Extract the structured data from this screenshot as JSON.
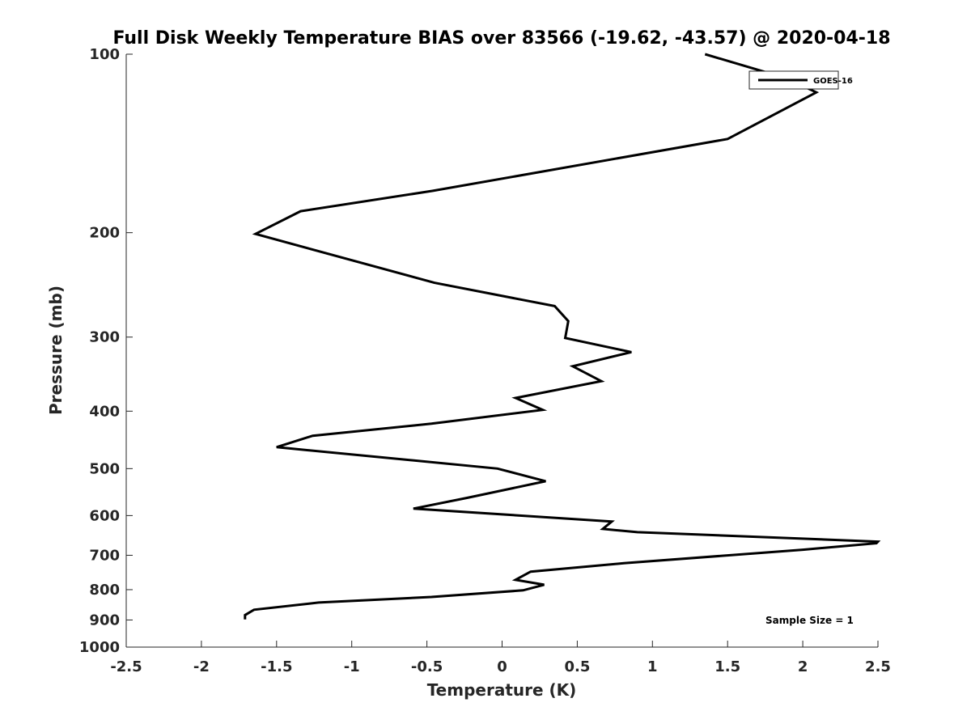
{
  "chart_data": {
    "type": "line",
    "title": "Full Disk Weekly Temperature BIAS over 83566 (-19.62, -43.57) @ 2020-04-18",
    "xlabel": "Temperature (K)",
    "ylabel": "Pressure (mb)",
    "xlim": [
      -2.5,
      2.5
    ],
    "ylim": [
      100,
      1000
    ],
    "yscale": "log",
    "yreversed": true,
    "xticks": [
      -2.5,
      -2,
      -1.5,
      -1,
      -0.5,
      0,
      0.5,
      1,
      1.5,
      2,
      2.5
    ],
    "xtick_labels": [
      "-2.5",
      "-2",
      "-1.5",
      "-1",
      "-0.5",
      "0",
      "0.5",
      "1",
      "1.5",
      "2",
      "2.5"
    ],
    "yticks": [
      100,
      200,
      300,
      400,
      500,
      600,
      700,
      800,
      900,
      1000
    ],
    "ytick_labels": [
      "100",
      "200",
      "300",
      "400",
      "500",
      "600",
      "700",
      "800",
      "900",
      "1000"
    ],
    "grid": false,
    "legend_position": "top-right",
    "series": [
      {
        "name": "GOES-16",
        "color": "#000000",
        "points": [
          [
            1.35,
            100
          ],
          [
            1.9,
            110
          ],
          [
            2.09,
            116
          ],
          [
            1.5,
            139
          ],
          [
            -0.46,
            170
          ],
          [
            -1.34,
            184
          ],
          [
            -1.64,
            201
          ],
          [
            -0.45,
            243
          ],
          [
            0.35,
            266
          ],
          [
            0.44,
            282
          ],
          [
            0.42,
            301
          ],
          [
            0.86,
            318
          ],
          [
            0.47,
            336
          ],
          [
            0.66,
            356
          ],
          [
            0.09,
            380
          ],
          [
            0.27,
            398
          ],
          [
            -0.47,
            420
          ],
          [
            -1.26,
            440
          ],
          [
            -1.5,
            460
          ],
          [
            -0.03,
            500
          ],
          [
            0.29,
            525
          ],
          [
            -0.23,
            560
          ],
          [
            -0.59,
            584
          ],
          [
            0.73,
            614
          ],
          [
            0.67,
            632
          ],
          [
            0.9,
            640
          ],
          [
            2.5,
            664
          ],
          [
            2.49,
            668
          ],
          [
            2.0,
            685
          ],
          [
            0.81,
            722
          ],
          [
            0.19,
            746
          ],
          [
            0.09,
            770
          ],
          [
            0.28,
            785
          ],
          [
            0.14,
            802
          ],
          [
            -0.47,
            823
          ],
          [
            -1.22,
            841
          ],
          [
            -1.65,
            865
          ],
          [
            -1.71,
            883
          ],
          [
            -1.71,
            898
          ]
        ]
      }
    ],
    "annotations": [
      "Sample Size = 1"
    ]
  }
}
